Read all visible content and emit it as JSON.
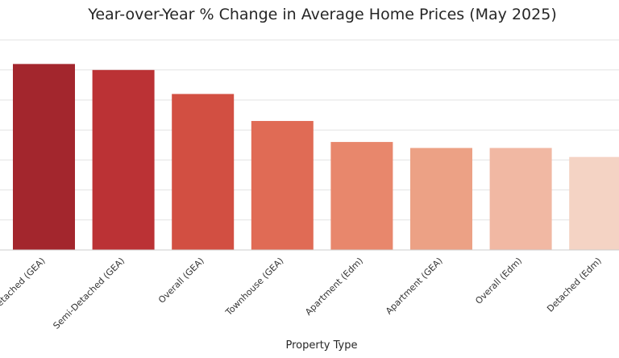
{
  "chart_data": {
    "type": "bar",
    "title": "Year-over-Year % Change in Average Home Prices (May 2025)",
    "xlabel": "Property Type",
    "ylabel": "",
    "categories": [
      "Detached (GEA)",
      "Semi-Detached (GEA)",
      "Overall (GEA)",
      "Townhouse (GEA)",
      "Apartment (Edm)",
      "Apartment (GEA)",
      "Overall (Edm)",
      "Detached (Edm)"
    ],
    "values": [
      6.2,
      6.0,
      5.2,
      4.3,
      3.6,
      3.4,
      3.4,
      3.1
    ],
    "ylim": [
      0,
      7.5
    ],
    "grid": true,
    "colors": [
      "#a3262d",
      "#bb3235",
      "#d24f42",
      "#e06b55",
      "#e8876c",
      "#eca185",
      "#f1b8a3",
      "#f4d3c4"
    ]
  }
}
